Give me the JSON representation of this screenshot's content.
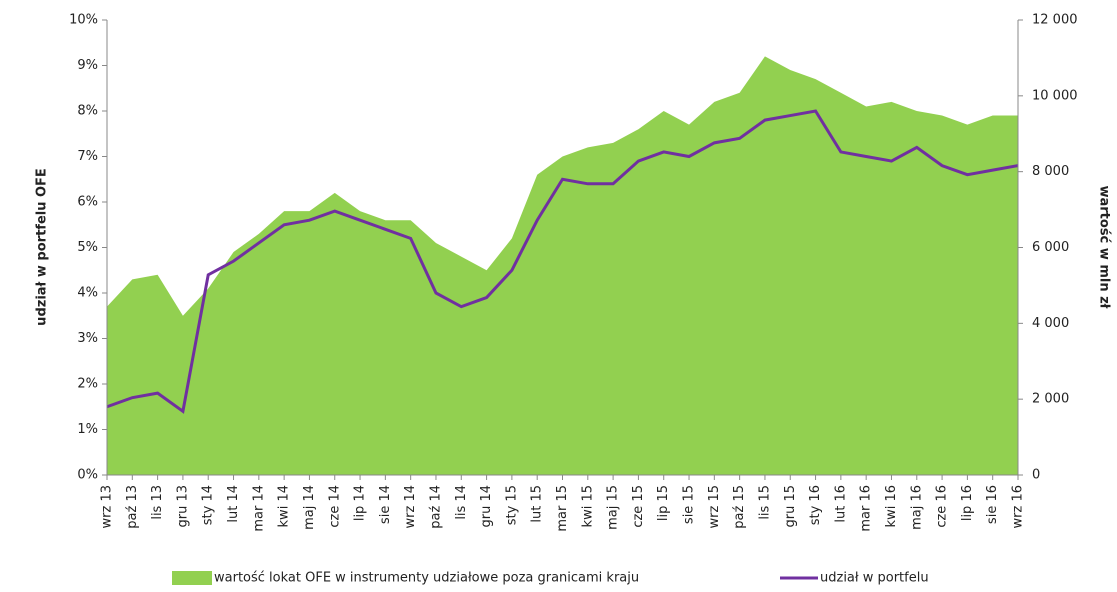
{
  "chart_data": {
    "type": "area-line",
    "y_label": "udział w portfelu OFE",
    "y2_label": "wartość w mln zł",
    "categories": [
      "wrz 13",
      "paź 13",
      "lis 13",
      "gru 13",
      "sty 14",
      "lut 14",
      "mar 14",
      "kwi 14",
      "maj 14",
      "cze 14",
      "lip 14",
      "sie 14",
      "wrz 14",
      "paź 14",
      "lis 14",
      "gru 14",
      "sty 15",
      "lut 15",
      "mar 15",
      "kwi 15",
      "maj 15",
      "cze 15",
      "lip 15",
      "sie 15",
      "wrz 15",
      "paź 15",
      "lis 15",
      "gru 15",
      "sty 16",
      "lut 16",
      "mar 16",
      "kwi 16",
      "maj 16",
      "cze 16",
      "lip 16",
      "sie 16",
      "wrz 16"
    ],
    "series": [
      {
        "name": "wartość lokat OFE w instrumenty udziałowe poza granicami kraju",
        "color": "#92d050",
        "kind": "area",
        "axis": "y2",
        "values": [
          4440,
          5160,
          5280,
          4200,
          4920,
          5880,
          6360,
          6960,
          6960,
          7440,
          6960,
          6720,
          6720,
          6120,
          5760,
          5400,
          6240,
          7920,
          8400,
          8640,
          8760,
          9120,
          9600,
          9240,
          9840,
          10080,
          11040,
          10680,
          10440,
          10080,
          9720,
          9840,
          9600,
          9480,
          9240,
          9480,
          9480
        ]
      },
      {
        "name": "udział w portfelu",
        "color": "#7030a0",
        "kind": "line",
        "values": [
          1.5,
          1.7,
          1.8,
          1.4,
          4.4,
          4.7,
          5.1,
          5.5,
          5.6,
          5.8,
          5.6,
          5.4,
          5.2,
          4.0,
          3.7,
          3.9,
          4.5,
          5.6,
          6.5,
          6.4,
          6.4,
          6.9,
          7.1,
          7.0,
          7.3,
          7.4,
          7.8,
          7.9,
          8.0,
          7.1,
          7.0,
          6.9,
          7.2,
          6.8,
          6.6,
          6.7,
          6.8
        ]
      }
    ],
    "ylim": [
      0,
      10
    ],
    "yticks": [
      {
        "value": 0,
        "label": "0%"
      },
      {
        "value": 1,
        "label": "1%"
      },
      {
        "value": 2,
        "label": "2%"
      },
      {
        "value": 3,
        "label": "3%"
      },
      {
        "value": 4,
        "label": "4%"
      },
      {
        "value": 5,
        "label": "5%"
      },
      {
        "value": 6,
        "label": "6%"
      },
      {
        "value": 7,
        "label": "7%"
      },
      {
        "value": 8,
        "label": "8%"
      },
      {
        "value": 9,
        "label": "9%"
      },
      {
        "value": 10,
        "label": "10%"
      }
    ],
    "y2lim": [
      0,
      12000
    ],
    "y2ticks": [
      0,
      {
        "value": 2000,
        "label": "2 000"
      },
      {
        "value": 4000,
        "label": "4 000"
      },
      {
        "value": 6000,
        "label": "6 000"
      },
      {
        "value": 8000,
        "label": "8 000"
      },
      {
        "value": 10000,
        "label": "10 000"
      },
      {
        "value": 12000,
        "label": "12 000"
      }
    ]
  }
}
